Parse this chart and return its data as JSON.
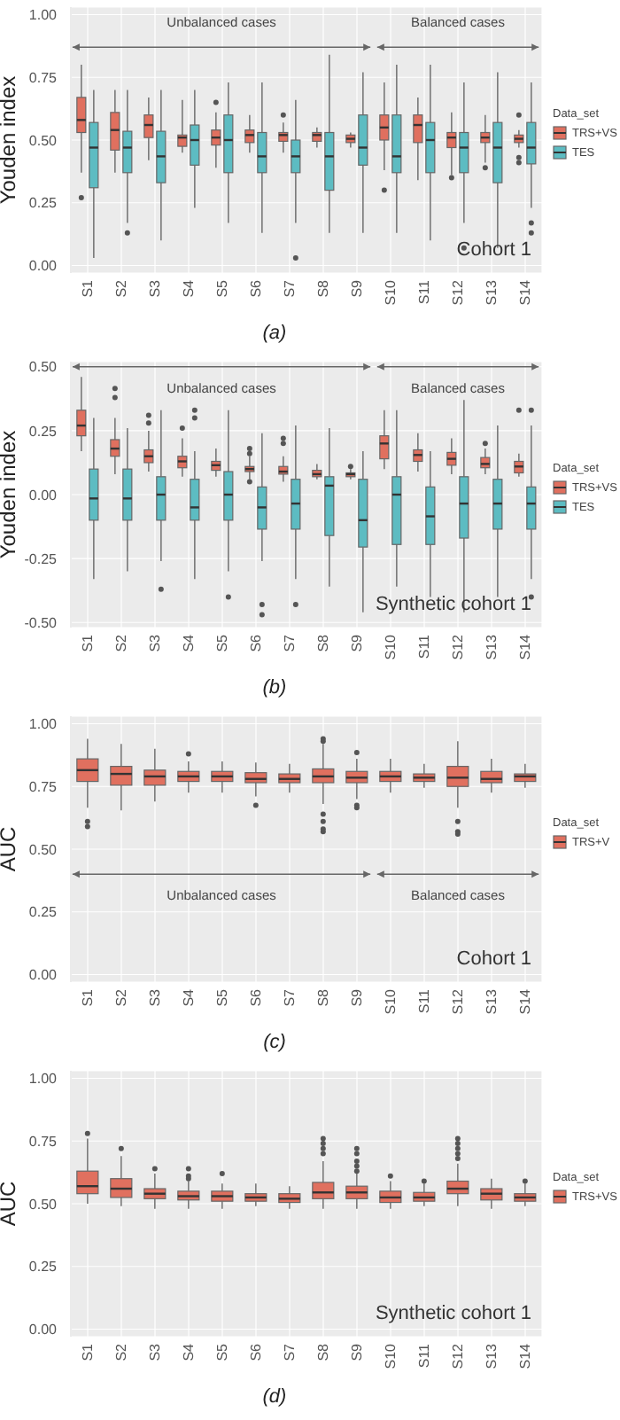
{
  "chart_data": [
    {
      "type": "box",
      "ylabel": "Youden index",
      "legend": "right",
      "legend_title": "Data_set",
      "grid": true,
      "categories": [
        "S1",
        "S2",
        "S3",
        "S4",
        "S5",
        "S6",
        "S7",
        "S8",
        "S9",
        "S10",
        "S11",
        "S12",
        "S13",
        "S14"
      ],
      "ylim": [
        -0.03,
        1.03
      ],
      "yticks": [
        {
          "value": 0,
          "label": "0.00"
        },
        {
          "value": 0.25,
          "label": "0.25"
        },
        {
          "value": 0.5,
          "label": "0.50"
        },
        {
          "value": 0.75,
          "label": "0.75"
        },
        {
          "value": 1,
          "label": "1.00"
        }
      ],
      "annotations": [
        "Unbalanced cases",
        "Balanced cases",
        "Cohort 1",
        "(a)"
      ],
      "series": [
        {
          "name": "TRS+VS",
          "color": "#e0705f",
          "boxes": [
            {
              "low": 0.37,
              "q1": 0.53,
              "median": 0.58,
              "q3": 0.67,
              "high": 0.8,
              "outliers": [
                0.27
              ]
            },
            {
              "low": 0.37,
              "q1": 0.46,
              "median": 0.54,
              "q3": 0.61,
              "high": 0.7
            },
            {
              "low": 0.42,
              "q1": 0.51,
              "median": 0.56,
              "q3": 0.6,
              "high": 0.67
            },
            {
              "low": 0.45,
              "q1": 0.475,
              "median": 0.51,
              "q3": 0.52,
              "high": 0.66
            },
            {
              "low": 0.39,
              "q1": 0.48,
              "median": 0.51,
              "q3": 0.54,
              "high": 0.61,
              "outliers": [
                0.65
              ]
            },
            {
              "low": 0.45,
              "q1": 0.49,
              "median": 0.52,
              "q3": 0.54,
              "high": 0.6
            },
            {
              "low": 0.45,
              "q1": 0.495,
              "median": 0.52,
              "q3": 0.53,
              "high": 0.57,
              "outliers": [
                0.6
              ]
            },
            {
              "low": 0.47,
              "q1": 0.495,
              "median": 0.52,
              "q3": 0.53,
              "high": 0.55
            },
            {
              "low": 0.47,
              "q1": 0.49,
              "median": 0.505,
              "q3": 0.52,
              "high": 0.53
            },
            {
              "low": 0.38,
              "q1": 0.5,
              "median": 0.55,
              "q3": 0.6,
              "high": 0.73,
              "outliers": [
                0.3
              ]
            },
            {
              "low": 0.34,
              "q1": 0.49,
              "median": 0.56,
              "q3": 0.6,
              "high": 0.67
            },
            {
              "low": 0.36,
              "q1": 0.47,
              "median": 0.51,
              "q3": 0.53,
              "high": 0.61,
              "outliers": [
                0.35
              ]
            },
            {
              "low": 0.41,
              "q1": 0.49,
              "median": 0.51,
              "q3": 0.53,
              "high": 0.6,
              "outliers": [
                0.39
              ]
            },
            {
              "low": 0.47,
              "q1": 0.49,
              "median": 0.505,
              "q3": 0.52,
              "high": 0.54,
              "outliers": [
                0.6,
                0.43,
                0.41
              ]
            }
          ]
        },
        {
          "name": "TES",
          "color": "#5dbcc2",
          "boxes": [
            {
              "low": 0.03,
              "q1": 0.31,
              "median": 0.47,
              "q3": 0.57,
              "high": 0.7
            },
            {
              "low": 0.17,
              "q1": 0.37,
              "median": 0.47,
              "q3": 0.535,
              "high": 0.7,
              "outliers": [
                0.13
              ]
            },
            {
              "low": 0.1,
              "q1": 0.33,
              "median": 0.435,
              "q3": 0.535,
              "high": 0.7
            },
            {
              "low": 0.23,
              "q1": 0.4,
              "median": 0.5,
              "q3": 0.56,
              "high": 0.7
            },
            {
              "low": 0.17,
              "q1": 0.37,
              "median": 0.5,
              "q3": 0.6,
              "high": 0.73
            },
            {
              "low": 0.13,
              "q1": 0.37,
              "median": 0.435,
              "q3": 0.53,
              "high": 0.73
            },
            {
              "low": 0.17,
              "q1": 0.37,
              "median": 0.435,
              "q3": 0.5,
              "high": 0.66,
              "outliers": [
                0.03
              ]
            },
            {
              "low": 0.13,
              "q1": 0.3,
              "median": 0.435,
              "q3": 0.53,
              "high": 0.84
            },
            {
              "low": 0.13,
              "q1": 0.4,
              "median": 0.47,
              "q3": 0.6,
              "high": 0.77
            },
            {
              "low": 0.13,
              "q1": 0.37,
              "median": 0.435,
              "q3": 0.6,
              "high": 0.8
            },
            {
              "low": 0.1,
              "q1": 0.37,
              "median": 0.5,
              "q3": 0.57,
              "high": 0.8
            },
            {
              "low": 0.17,
              "q1": 0.37,
              "median": 0.47,
              "q3": 0.53,
              "high": 0.73,
              "outliers": [
                0.07
              ]
            },
            {
              "low": 0.07,
              "q1": 0.33,
              "median": 0.47,
              "q3": 0.57,
              "high": 0.77
            },
            {
              "low": 0.23,
              "q1": 0.405,
              "median": 0.47,
              "q3": 0.57,
              "high": 0.73,
              "outliers": [
                0.17,
                0.13
              ]
            }
          ]
        }
      ]
    },
    {
      "type": "box",
      "ylabel": "Youden index",
      "legend": "right",
      "legend_title": "Data_set",
      "grid": true,
      "categories": [
        "S1",
        "S2",
        "S3",
        "S4",
        "S5",
        "S6",
        "S7",
        "S8",
        "S9",
        "S10",
        "S11",
        "S12",
        "S13",
        "S14"
      ],
      "ylim": [
        -0.52,
        0.52
      ],
      "yticks": [
        {
          "value": -0.5,
          "label": "-0.50"
        },
        {
          "value": -0.25,
          "label": "-0.25"
        },
        {
          "value": 0,
          "label": "0.00"
        },
        {
          "value": 0.25,
          "label": "0.25"
        },
        {
          "value": 0.5,
          "label": "0.50"
        }
      ],
      "annotations": [
        "Unbalanced cases",
        "Balanced cases",
        "Synthetic cohort 1",
        "(b)"
      ],
      "series": [
        {
          "name": "TRS+VS",
          "color": "#e0705f",
          "boxes": [
            {
              "low": 0.17,
              "q1": 0.23,
              "median": 0.27,
              "q3": 0.33,
              "high": 0.46
            },
            {
              "low": 0.08,
              "q1": 0.15,
              "median": 0.18,
              "q3": 0.215,
              "high": 0.3,
              "outliers": [
                0.415,
                0.38
              ]
            },
            {
              "low": 0.09,
              "q1": 0.125,
              "median": 0.15,
              "q3": 0.175,
              "high": 0.25,
              "outliers": [
                0.31,
                0.28
              ]
            },
            {
              "low": 0.07,
              "q1": 0.105,
              "median": 0.13,
              "q3": 0.15,
              "high": 0.22,
              "outliers": [
                0.26
              ]
            },
            {
              "low": 0.07,
              "q1": 0.095,
              "median": 0.115,
              "q3": 0.13,
              "high": 0.18
            },
            {
              "low": 0.06,
              "q1": 0.09,
              "median": 0.1,
              "q3": 0.11,
              "high": 0.15,
              "outliers": [
                0.18,
                0.16,
                0.05
              ]
            },
            {
              "low": 0.05,
              "q1": 0.08,
              "median": 0.09,
              "q3": 0.11,
              "high": 0.15,
              "outliers": [
                0.22,
                0.2
              ]
            },
            {
              "low": 0.06,
              "q1": 0.07,
              "median": 0.08,
              "q3": 0.095,
              "high": 0.12
            },
            {
              "low": 0.06,
              "q1": 0.07,
              "median": 0.08,
              "q3": 0.085,
              "high": 0.1,
              "outliers": [
                0.11
              ]
            },
            {
              "low": 0.1,
              "q1": 0.14,
              "median": 0.2,
              "q3": 0.23,
              "high": 0.33
            },
            {
              "low": 0.09,
              "q1": 0.13,
              "median": 0.155,
              "q3": 0.175,
              "high": 0.24
            },
            {
              "low": 0.08,
              "q1": 0.115,
              "median": 0.14,
              "q3": 0.165,
              "high": 0.22
            },
            {
              "low": 0.08,
              "q1": 0.105,
              "median": 0.12,
              "q3": 0.145,
              "high": 0.18,
              "outliers": [
                0.2
              ]
            },
            {
              "low": 0.07,
              "q1": 0.085,
              "median": 0.11,
              "q3": 0.13,
              "high": 0.16,
              "outliers": [
                0.33
              ]
            }
          ]
        },
        {
          "name": "TES",
          "color": "#5dbcc2",
          "boxes": [
            {
              "low": -0.33,
              "q1": -0.1,
              "median": -0.015,
              "q3": 0.1,
              "high": 0.3
            },
            {
              "low": -0.3,
              "q1": -0.1,
              "median": -0.015,
              "q3": 0.1,
              "high": 0.26
            },
            {
              "low": -0.26,
              "q1": -0.1,
              "median": 0,
              "q3": 0.07,
              "high": 0.33,
              "outliers": [
                -0.37
              ]
            },
            {
              "low": -0.33,
              "q1": -0.1,
              "median": -0.05,
              "q3": 0.06,
              "high": 0.17,
              "outliers": [
                0.33,
                0.3
              ]
            },
            {
              "low": -0.3,
              "q1": -0.1,
              "median": 0,
              "q3": 0.09,
              "high": 0.33,
              "outliers": [
                -0.4
              ]
            },
            {
              "low": -0.26,
              "q1": -0.135,
              "median": -0.05,
              "q3": 0.03,
              "high": 0.24,
              "outliers": [
                -0.43,
                -0.47
              ]
            },
            {
              "low": -0.33,
              "q1": -0.135,
              "median": -0.035,
              "q3": 0.06,
              "high": 0.27,
              "outliers": [
                -0.43
              ]
            },
            {
              "low": -0.36,
              "q1": -0.16,
              "median": 0.035,
              "q3": 0.07,
              "high": 0.26
            },
            {
              "low": -0.46,
              "q1": -0.205,
              "median": -0.1,
              "q3": 0.06,
              "high": 0.17
            },
            {
              "low": -0.36,
              "q1": -0.195,
              "median": 0,
              "q3": 0.07,
              "high": 0.33
            },
            {
              "low": -0.4,
              "q1": -0.195,
              "median": -0.085,
              "q3": 0.03,
              "high": 0.17
            },
            {
              "low": -0.46,
              "q1": -0.17,
              "median": -0.035,
              "q3": 0.07,
              "high": 0.37
            },
            {
              "low": -0.4,
              "q1": -0.135,
              "median": -0.035,
              "q3": 0.06,
              "high": 0.27
            },
            {
              "low": -0.33,
              "q1": -0.135,
              "median": -0.035,
              "q3": 0.03,
              "high": 0.27,
              "outliers": [
                0.33,
                -0.4
              ]
            }
          ]
        }
      ]
    },
    {
      "type": "box",
      "ylabel": "AUC",
      "legend": "right",
      "legend_title": "Data_set",
      "grid": true,
      "categories": [
        "S1",
        "S2",
        "S3",
        "S4",
        "S5",
        "S6",
        "S7",
        "S8",
        "S9",
        "S10",
        "S11",
        "S12",
        "S13",
        "S14"
      ],
      "ylim": [
        -0.03,
        1.03
      ],
      "yticks": [
        {
          "value": 0,
          "label": "0.00"
        },
        {
          "value": 0.25,
          "label": "0.25"
        },
        {
          "value": 0.5,
          "label": "0.50"
        },
        {
          "value": 0.75,
          "label": "0.75"
        },
        {
          "value": 1,
          "label": "1.00"
        }
      ],
      "annotations": [
        "Unbalanced cases",
        "Balanced cases",
        "Cohort 1",
        "(c)"
      ],
      "series": [
        {
          "name": "TRS+V",
          "color": "#e0705f",
          "boxes": [
            {
              "low": 0.665,
              "q1": 0.77,
              "median": 0.815,
              "q3": 0.86,
              "high": 0.94,
              "outliers": [
                0.61,
                0.59
              ]
            },
            {
              "low": 0.655,
              "q1": 0.755,
              "median": 0.8,
              "q3": 0.83,
              "high": 0.92
            },
            {
              "low": 0.69,
              "q1": 0.755,
              "median": 0.79,
              "q3": 0.815,
              "high": 0.9
            },
            {
              "low": 0.725,
              "q1": 0.77,
              "median": 0.79,
              "q3": 0.81,
              "high": 0.85,
              "outliers": [
                0.88
              ]
            },
            {
              "low": 0.725,
              "q1": 0.77,
              "median": 0.79,
              "q3": 0.81,
              "high": 0.85
            },
            {
              "low": 0.71,
              "q1": 0.765,
              "median": 0.78,
              "q3": 0.805,
              "high": 0.845,
              "outliers": [
                0.675
              ]
            },
            {
              "low": 0.725,
              "q1": 0.765,
              "median": 0.78,
              "q3": 0.8,
              "high": 0.84
            },
            {
              "low": 0.68,
              "q1": 0.765,
              "median": 0.79,
              "q3": 0.82,
              "high": 0.92,
              "outliers": [
                0.94,
                0.93,
                0.64,
                0.61,
                0.58,
                0.57
              ]
            },
            {
              "low": 0.7,
              "q1": 0.765,
              "median": 0.785,
              "q3": 0.81,
              "high": 0.86,
              "outliers": [
                0.885,
                0.675,
                0.665
              ]
            },
            {
              "low": 0.725,
              "q1": 0.77,
              "median": 0.79,
              "q3": 0.81,
              "high": 0.86
            },
            {
              "low": 0.745,
              "q1": 0.77,
              "median": 0.785,
              "q3": 0.8,
              "high": 0.84
            },
            {
              "low": 0.665,
              "q1": 0.75,
              "median": 0.785,
              "q3": 0.83,
              "high": 0.93,
              "outliers": [
                0.61,
                0.57,
                0.56
              ]
            },
            {
              "low": 0.725,
              "q1": 0.765,
              "median": 0.78,
              "q3": 0.81,
              "high": 0.86
            },
            {
              "low": 0.745,
              "q1": 0.77,
              "median": 0.79,
              "q3": 0.8,
              "high": 0.84
            }
          ]
        }
      ]
    },
    {
      "type": "box",
      "ylabel": "AUC",
      "legend": "right",
      "legend_title": "Data_set",
      "grid": true,
      "categories": [
        "S1",
        "S2",
        "S3",
        "S4",
        "S5",
        "S6",
        "S7",
        "S8",
        "S9",
        "S10",
        "S11",
        "S12",
        "S13",
        "S14"
      ],
      "ylim": [
        -0.03,
        1.03
      ],
      "yticks": [
        {
          "value": 0,
          "label": "0.00"
        },
        {
          "value": 0.25,
          "label": "0.25"
        },
        {
          "value": 0.5,
          "label": "0.50"
        },
        {
          "value": 0.75,
          "label": "0.75"
        },
        {
          "value": 1,
          "label": "1.00"
        }
      ],
      "annotations": [
        "Synthetic cohort 1",
        "(d)"
      ],
      "series": [
        {
          "name": "TRS+VS",
          "color": "#e0705f",
          "boxes": [
            {
              "low": 0.5,
              "q1": 0.54,
              "median": 0.57,
              "q3": 0.63,
              "high": 0.76,
              "outliers": [
                0.78
              ]
            },
            {
              "low": 0.49,
              "q1": 0.525,
              "median": 0.56,
              "q3": 0.6,
              "high": 0.69,
              "outliers": [
                0.72
              ]
            },
            {
              "low": 0.48,
              "q1": 0.52,
              "median": 0.54,
              "q3": 0.56,
              "high": 0.62,
              "outliers": [
                0.64
              ]
            },
            {
              "low": 0.48,
              "q1": 0.515,
              "median": 0.53,
              "q3": 0.55,
              "high": 0.59,
              "outliers": [
                0.64,
                0.61,
                0.6
              ]
            },
            {
              "low": 0.48,
              "q1": 0.51,
              "median": 0.53,
              "q3": 0.55,
              "high": 0.58,
              "outliers": [
                0.62
              ]
            },
            {
              "low": 0.49,
              "q1": 0.51,
              "median": 0.525,
              "q3": 0.54,
              "high": 0.58
            },
            {
              "low": 0.48,
              "q1": 0.505,
              "median": 0.52,
              "q3": 0.54,
              "high": 0.57
            },
            {
              "low": 0.48,
              "q1": 0.52,
              "median": 0.545,
              "q3": 0.585,
              "high": 0.67,
              "outliers": [
                0.76,
                0.74,
                0.72,
                0.7
              ]
            },
            {
              "low": 0.48,
              "q1": 0.52,
              "median": 0.545,
              "q3": 0.57,
              "high": 0.62,
              "outliers": [
                0.72,
                0.7,
                0.67,
                0.65,
                0.63
              ]
            },
            {
              "low": 0.48,
              "q1": 0.505,
              "median": 0.525,
              "q3": 0.55,
              "high": 0.59,
              "outliers": [
                0.61
              ]
            },
            {
              "low": 0.49,
              "q1": 0.51,
              "median": 0.525,
              "q3": 0.545,
              "high": 0.58,
              "outliers": [
                0.59
              ]
            },
            {
              "low": 0.49,
              "q1": 0.54,
              "median": 0.56,
              "q3": 0.59,
              "high": 0.66,
              "outliers": [
                0.76,
                0.74,
                0.72,
                0.7,
                0.68
              ]
            },
            {
              "low": 0.48,
              "q1": 0.515,
              "median": 0.54,
              "q3": 0.56,
              "high": 0.6
            },
            {
              "low": 0.49,
              "q1": 0.51,
              "median": 0.525,
              "q3": 0.54,
              "high": 0.58,
              "outliers": [
                0.59
              ]
            }
          ]
        }
      ]
    }
  ]
}
